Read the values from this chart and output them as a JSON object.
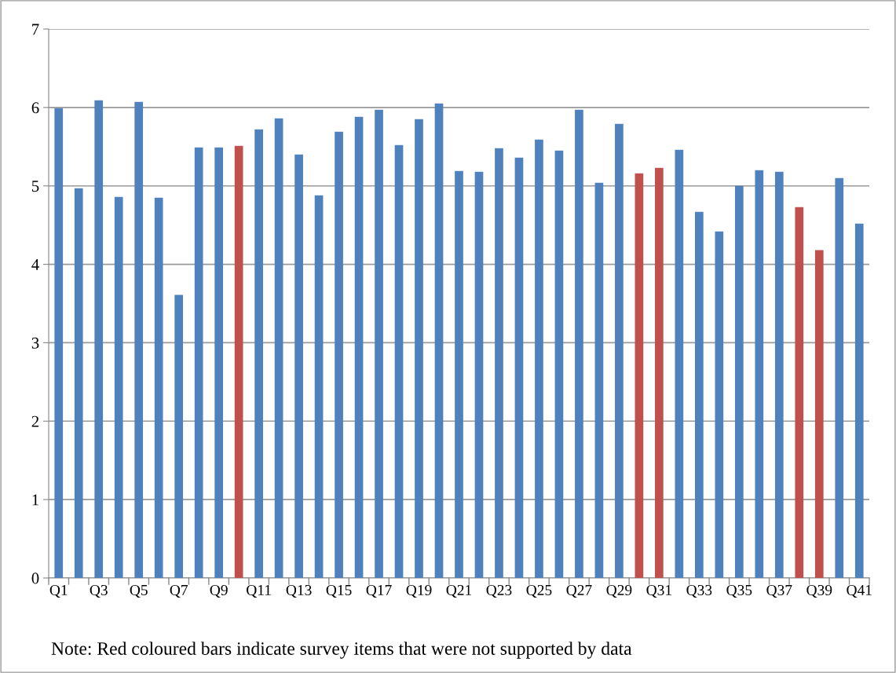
{
  "chart_data": {
    "type": "bar",
    "categories": [
      "Q1",
      null,
      "Q3",
      null,
      "Q5",
      null,
      "Q7",
      null,
      "Q9",
      null,
      "Q11",
      null,
      "Q13",
      null,
      "Q15",
      null,
      "Q17",
      null,
      "Q19",
      null,
      "Q21",
      null,
      "Q23",
      null,
      "Q25",
      null,
      "Q27",
      null,
      "Q29",
      null,
      "Q31",
      null,
      "Q33",
      null,
      "Q35",
      null,
      "Q37",
      null,
      "Q39",
      null,
      "Q41"
    ],
    "values": [
      5.99,
      4.97,
      6.09,
      4.86,
      6.07,
      4.85,
      3.61,
      5.49,
      5.49,
      5.51,
      5.72,
      5.86,
      5.4,
      4.88,
      5.69,
      5.88,
      5.97,
      5.52,
      5.85,
      6.05,
      5.19,
      5.18,
      5.48,
      5.36,
      5.59,
      5.45,
      5.97,
      5.04,
      5.79,
      5.16,
      5.23,
      5.46,
      4.67,
      4.42,
      5.0,
      5.2,
      5.18,
      4.73,
      4.18,
      5.1,
      4.52
    ],
    "colors": [
      "#4f81bd",
      "#4f81bd",
      "#4f81bd",
      "#4f81bd",
      "#4f81bd",
      "#4f81bd",
      "#4f81bd",
      "#4f81bd",
      "#4f81bd",
      "#c0504d",
      "#4f81bd",
      "#4f81bd",
      "#4f81bd",
      "#4f81bd",
      "#4f81bd",
      "#4f81bd",
      "#4f81bd",
      "#4f81bd",
      "#4f81bd",
      "#4f81bd",
      "#4f81bd",
      "#4f81bd",
      "#4f81bd",
      "#4f81bd",
      "#4f81bd",
      "#4f81bd",
      "#4f81bd",
      "#4f81bd",
      "#4f81bd",
      "#c0504d",
      "#c0504d",
      "#4f81bd",
      "#4f81bd",
      "#4f81bd",
      "#4f81bd",
      "#4f81bd",
      "#4f81bd",
      "#c0504d",
      "#c0504d",
      "#4f81bd",
      "#4f81bd"
    ],
    "ylim": [
      0,
      7
    ],
    "yticks": [
      0,
      1,
      2,
      3,
      4,
      5,
      6,
      7
    ],
    "grid": "y",
    "annotations": [
      "Note: Red coloured bars indicate survey items that were not supported by data"
    ]
  }
}
